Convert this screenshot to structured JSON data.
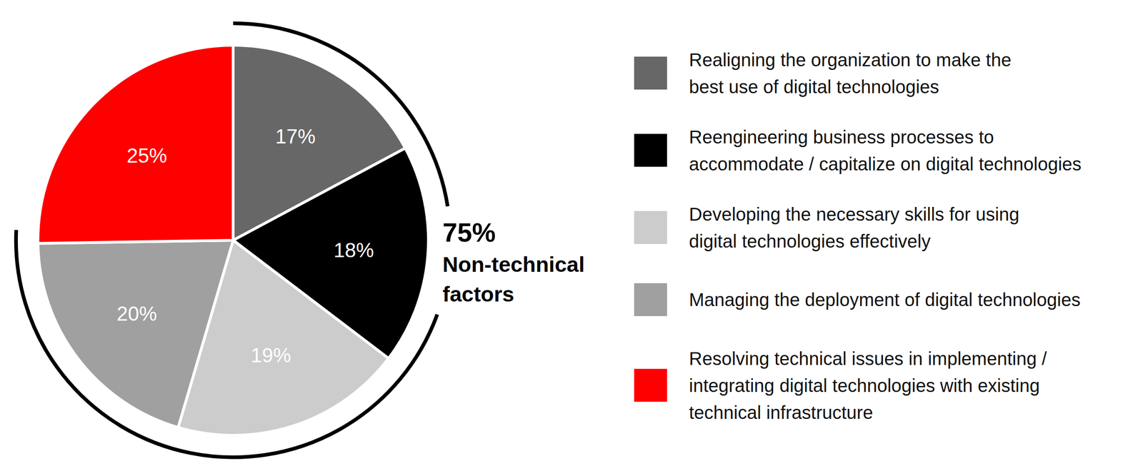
{
  "chart_data": {
    "type": "pie",
    "categories": [
      "Realigning the organization to make the\nbest use of digital technologies",
      "Reengineering business processes to\naccommodate / capitalize on digital technologies",
      "Developing the necessary skills for using\ndigital technologies effectively",
      "Managing the deployment of digital technologies",
      "Resolving technical issues in implementing /\nintegrating digital technologies with existing\ntechnical infrastructure"
    ],
    "values": [
      17,
      18,
      19,
      20,
      25
    ],
    "value_labels": [
      "17%",
      "18%",
      "19%",
      "20%",
      "25%"
    ],
    "colors": [
      "#676767",
      "#000000",
      "#cccccc",
      "#a0a0a0",
      "#ff0000"
    ],
    "data_labels": true,
    "legend": "right",
    "annotation": {
      "value": 75,
      "label": "75%",
      "text": "Non-technical\nfactors"
    }
  }
}
